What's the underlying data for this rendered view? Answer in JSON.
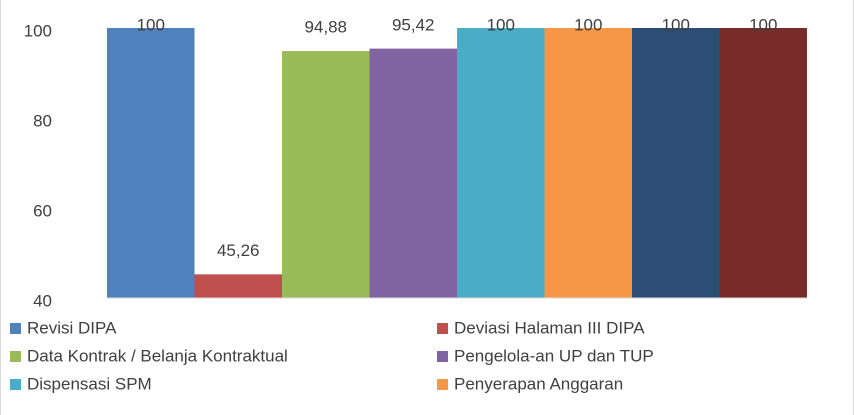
{
  "chart_data": {
    "type": "bar",
    "series": [
      {
        "name": "Revisi DIPA",
        "color": "#4f81bd",
        "values": [
          100
        ],
        "value_labels": [
          "100"
        ]
      },
      {
        "name": "Deviasi Halaman III DIPA",
        "color": "#c0504d",
        "values": [
          45.26
        ],
        "value_labels": [
          "45,26"
        ]
      },
      {
        "name": "Data Kontrak / Belanja Kontraktual",
        "color": "#9bbb59",
        "values": [
          94.88
        ],
        "value_labels": [
          "94,88"
        ]
      },
      {
        "name": "Pengelola-an UP dan TUP",
        "color": "#8064a2",
        "values": [
          95.42
        ],
        "value_labels": [
          "95,42"
        ]
      },
      {
        "name": "Dispensasi SPM",
        "color": "#4bacc6",
        "values": [
          100
        ],
        "value_labels": [
          "100"
        ]
      },
      {
        "name": "Penyerapan Anggaran",
        "color": "#f79646",
        "values": [
          100
        ],
        "value_labels": [
          "100"
        ]
      },
      {
        "color": "#2c4d75",
        "values": [
          100
        ],
        "value_labels": [
          "100"
        ]
      },
      {
        "color": "#772c2a",
        "values": [
          100
        ],
        "value_labels": [
          "100"
        ]
      }
    ],
    "ylim": [
      40,
      100
    ],
    "yticks": [
      40,
      60,
      80,
      100
    ],
    "grid": false,
    "legend": "bottom"
  }
}
